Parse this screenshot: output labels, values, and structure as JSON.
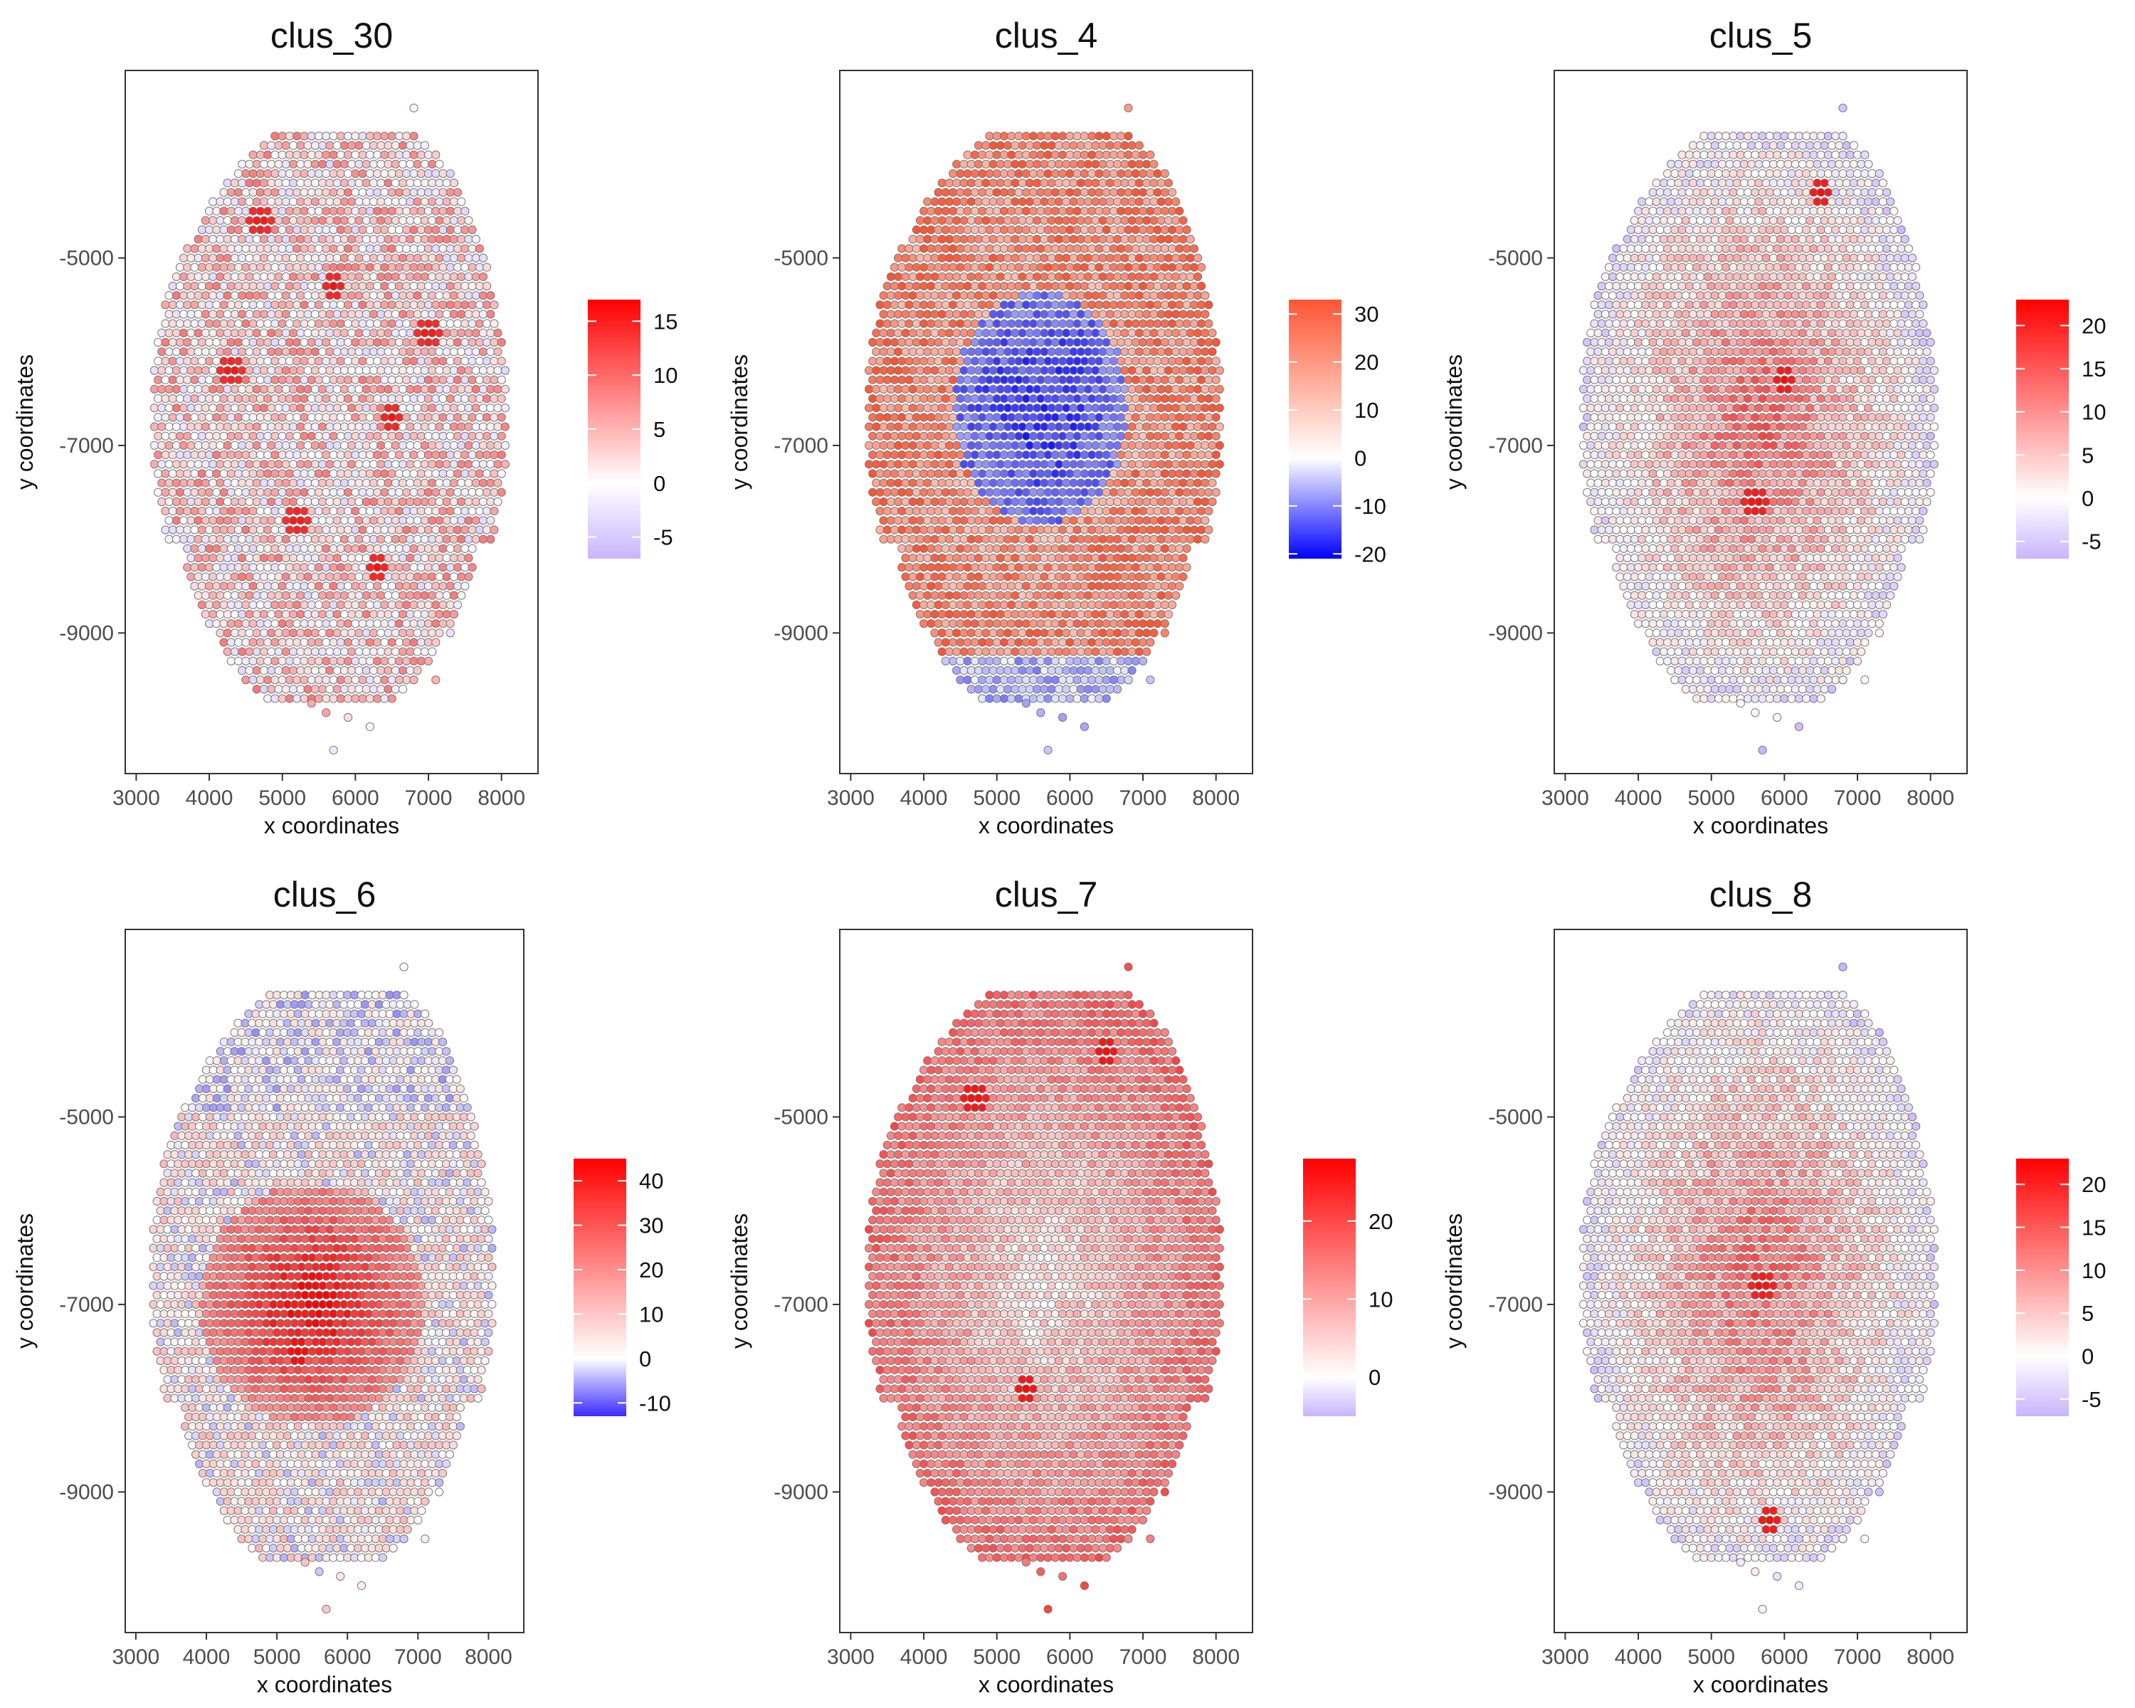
{
  "chart_data": [
    {
      "type": "scatter",
      "title": "clus_30",
      "xlabel": "x coordinates",
      "ylabel": "y coordinates",
      "xlim": [
        2850,
        8500
      ],
      "ylim": [
        -10500,
        -3000
      ],
      "xticks": [
        3000,
        4000,
        5000,
        6000,
        7000,
        8000
      ],
      "yticks": [
        -5000,
        -7000,
        -9000
      ],
      "legend": {
        "position": "right",
        "min": -7,
        "max": 17,
        "ticks": [
          -5,
          0,
          5,
          10,
          15
        ],
        "low_color": "#c8b4ff",
        "mid_color": "#ffffff",
        "high_color": "#ff0000"
      },
      "pattern": "patchy",
      "hotspots": [
        [
          4700,
          -4600
        ],
        [
          5700,
          -5300
        ],
        [
          7000,
          -5800
        ],
        [
          4300,
          -6200
        ],
        [
          6500,
          -6700
        ],
        [
          5200,
          -7800
        ],
        [
          6300,
          -8300
        ]
      ]
    },
    {
      "type": "scatter",
      "title": "clus_4",
      "xlabel": "x coordinates",
      "ylabel": "y coordinates",
      "xlim": [
        2850,
        8500
      ],
      "ylim": [
        -10500,
        -3000
      ],
      "xticks": [
        3000,
        4000,
        5000,
        6000,
        7000,
        8000
      ],
      "yticks": [
        -5000,
        -7000,
        -9000
      ],
      "legend": {
        "position": "right",
        "min": -21,
        "max": 33,
        "ticks": [
          -20,
          -10,
          0,
          10,
          20,
          30
        ],
        "low_color": "#0000ff",
        "mid_color": "#ffffff",
        "high_color": "#ff5533"
      },
      "pattern": "center-low",
      "hotspots": [
        [
          3600,
          -6200
        ],
        [
          4200,
          -8300
        ],
        [
          6500,
          -8400
        ],
        [
          7300,
          -6500
        ],
        [
          4300,
          -4400
        ]
      ]
    },
    {
      "type": "scatter",
      "title": "clus_5",
      "xlabel": "x coordinates",
      "ylabel": "y coordinates",
      "xlim": [
        2850,
        8500
      ],
      "ylim": [
        -10500,
        -3000
      ],
      "xticks": [
        3000,
        4000,
        5000,
        6000,
        7000,
        8000
      ],
      "yticks": [
        -5000,
        -7000,
        -9000
      ],
      "legend": {
        "position": "right",
        "min": -7,
        "max": 23,
        "ticks": [
          -5,
          0,
          5,
          10,
          15,
          20
        ],
        "low_color": "#c8b4ff",
        "mid_color": "#ffffff",
        "high_color": "#ff0000"
      },
      "pattern": "center-high",
      "hotspots": [
        [
          5600,
          -7600
        ],
        [
          6000,
          -6300
        ],
        [
          6500,
          -4300
        ]
      ]
    },
    {
      "type": "scatter",
      "title": "clus_6",
      "xlabel": "x coordinates",
      "ylabel": "y coordinates",
      "xlim": [
        2850,
        8500
      ],
      "ylim": [
        -10500,
        -3000
      ],
      "xticks": [
        3000,
        4000,
        5000,
        6000,
        7000,
        8000
      ],
      "yticks": [
        -5000,
        -7000,
        -9000
      ],
      "legend": {
        "position": "right",
        "min": -13,
        "max": 45,
        "ticks": [
          -10,
          0,
          10,
          20,
          30,
          40
        ],
        "low_color": "#3a2bff",
        "mid_color": "#ffffff",
        "high_color": "#ff0000"
      },
      "pattern": "lower-center-high",
      "hotspots": [
        [
          5500,
          -6800
        ],
        [
          5300,
          -7500
        ]
      ]
    },
    {
      "type": "scatter",
      "title": "clus_7",
      "xlabel": "x coordinates",
      "ylabel": "y coordinates",
      "xlim": [
        2850,
        8500
      ],
      "ylim": [
        -10500,
        -3000
      ],
      "xticks": [
        3000,
        4000,
        5000,
        6000,
        7000,
        8000
      ],
      "yticks": [
        -5000,
        -7000,
        -9000
      ],
      "legend": {
        "position": "right",
        "min": -5,
        "max": 28,
        "ticks": [
          0,
          10,
          20
        ],
        "low_color": "#c8b4ff",
        "mid_color": "#ffffff",
        "high_color": "#ff0000"
      },
      "pattern": "ring-high",
      "hotspots": [
        [
          5400,
          -7900
        ],
        [
          4700,
          -4800
        ],
        [
          6500,
          -4300
        ]
      ]
    },
    {
      "type": "scatter",
      "title": "clus_8",
      "xlabel": "x coordinates",
      "ylabel": "y coordinates",
      "xlim": [
        2850,
        8500
      ],
      "ylim": [
        -10500,
        -3000
      ],
      "xticks": [
        3000,
        4000,
        5000,
        6000,
        7000,
        8000
      ],
      "yticks": [
        -5000,
        -7000,
        -9000
      ],
      "legend": {
        "position": "right",
        "min": -7,
        "max": 23,
        "ticks": [
          -5,
          0,
          5,
          10,
          15,
          20
        ],
        "low_color": "#c8b4ff",
        "mid_color": "#ffffff",
        "high_color": "#ff0000"
      },
      "pattern": "center-high",
      "hotspots": [
        [
          5800,
          -9300
        ],
        [
          5700,
          -6800
        ]
      ]
    }
  ]
}
